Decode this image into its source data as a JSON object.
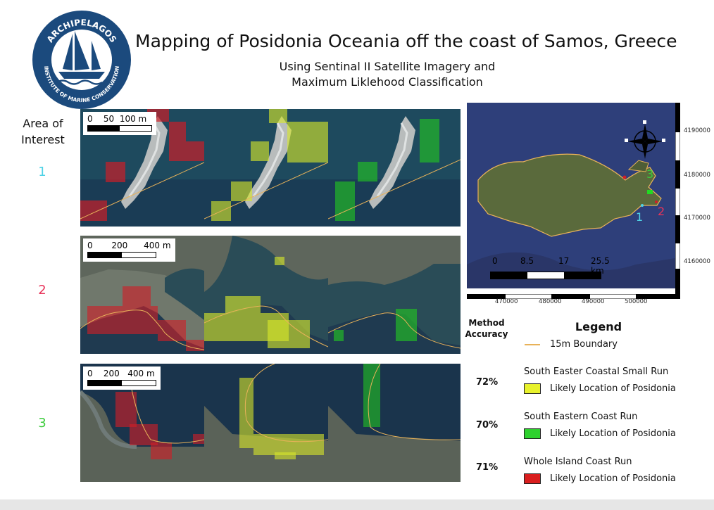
{
  "logo": {
    "top_text": "ARCHIPELAGOS",
    "bottom_text": "INSTITUTE OF MARINE CONSERVATION",
    "color": "#1b4a7d"
  },
  "title": "Mapping of Posidonia Oceania off the coast of Samos, Greece",
  "subtitle_line1": "Using Sentinal II Satellite Imagery and",
  "subtitle_line2": "Maximum Liklehood Classification",
  "aoi_header_line1": "Area of",
  "aoi_header_line2": "Interest",
  "areas": [
    {
      "number": "1",
      "color": "#4fd2e6",
      "scale_labels": [
        "0",
        "50",
        "100 m"
      ]
    },
    {
      "number": "2",
      "color": "#e8345a",
      "scale_labels": [
        "0",
        "200",
        "400 m"
      ]
    },
    {
      "number": "3",
      "color": "#3ccc3c",
      "scale_labels": [
        "0",
        "200",
        "400 m"
      ]
    }
  ],
  "overview_map": {
    "y_ticks": [
      "4190000",
      "4180000",
      "4170000",
      "4160000"
    ],
    "x_ticks": [
      "470000",
      "480000",
      "490000",
      "500000"
    ],
    "scale_labels": [
      "0",
      "8.5",
      "17",
      "25.5 km"
    ],
    "site_labels": [
      "1",
      "2",
      "3"
    ],
    "compass_icon": "compass-rose-icon"
  },
  "method_accuracy_line1": "Method",
  "method_accuracy_line2": "Accuracy",
  "legend": {
    "title": "Legend",
    "boundary_label": "15m Boundary",
    "boundary_color": "#e8b259",
    "runs": [
      {
        "name": "South Easter Coastal Small Run",
        "label": "Likely Location of Posidonia",
        "color": "#e8f22c",
        "accuracy": "72%"
      },
      {
        "name": "South Eastern Coast Run",
        "label": "Likely Location of Posidonia",
        "color": "#2ed12e",
        "accuracy": "70%"
      },
      {
        "name": "Whole Island Coast Run",
        "label": "Likely Location of Posidonia",
        "color": "#d91e1e",
        "accuracy": "71%"
      }
    ]
  }
}
